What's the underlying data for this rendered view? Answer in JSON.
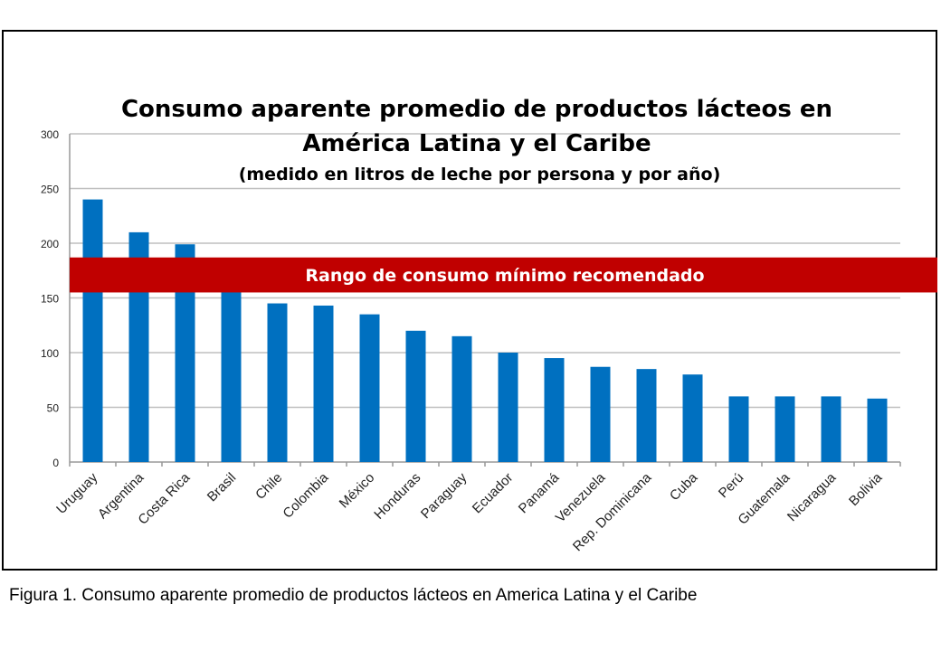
{
  "chart_data": {
    "type": "bar",
    "title_line1": "Consumo aparente promedio de productos lácteos en",
    "title_line2": "América Latina y el Caribe",
    "subtitle": "(medido en litros de leche por persona y por año)",
    "categories": [
      "Uruguay",
      "Argentina",
      "Costa Rica",
      "Brasil",
      "Chile",
      "Colombia",
      "México",
      "Honduras",
      "Paraguay",
      "Ecuador",
      "Panamá",
      "Venezuela",
      "Rep. Dominicana",
      "Cuba",
      "Perú",
      "Guatemala",
      "Nicaragua",
      "Bolivia"
    ],
    "values": [
      240,
      210,
      199,
      165,
      145,
      143,
      135,
      120,
      115,
      100,
      95,
      87,
      85,
      80,
      60,
      60,
      60,
      58
    ],
    "ylim": [
      0,
      300
    ],
    "yticks": [
      0,
      50,
      100,
      150,
      200,
      250,
      300
    ],
    "grid": true,
    "bar_color": "#0070C0",
    "band": {
      "label": "Rango de consumo mínimo recomendado",
      "range": [
        155,
        187
      ],
      "color": "#C00000"
    }
  },
  "caption": "Figura 1. Consumo aparente promedio de productos lácteos en America Latina y el Caribe"
}
